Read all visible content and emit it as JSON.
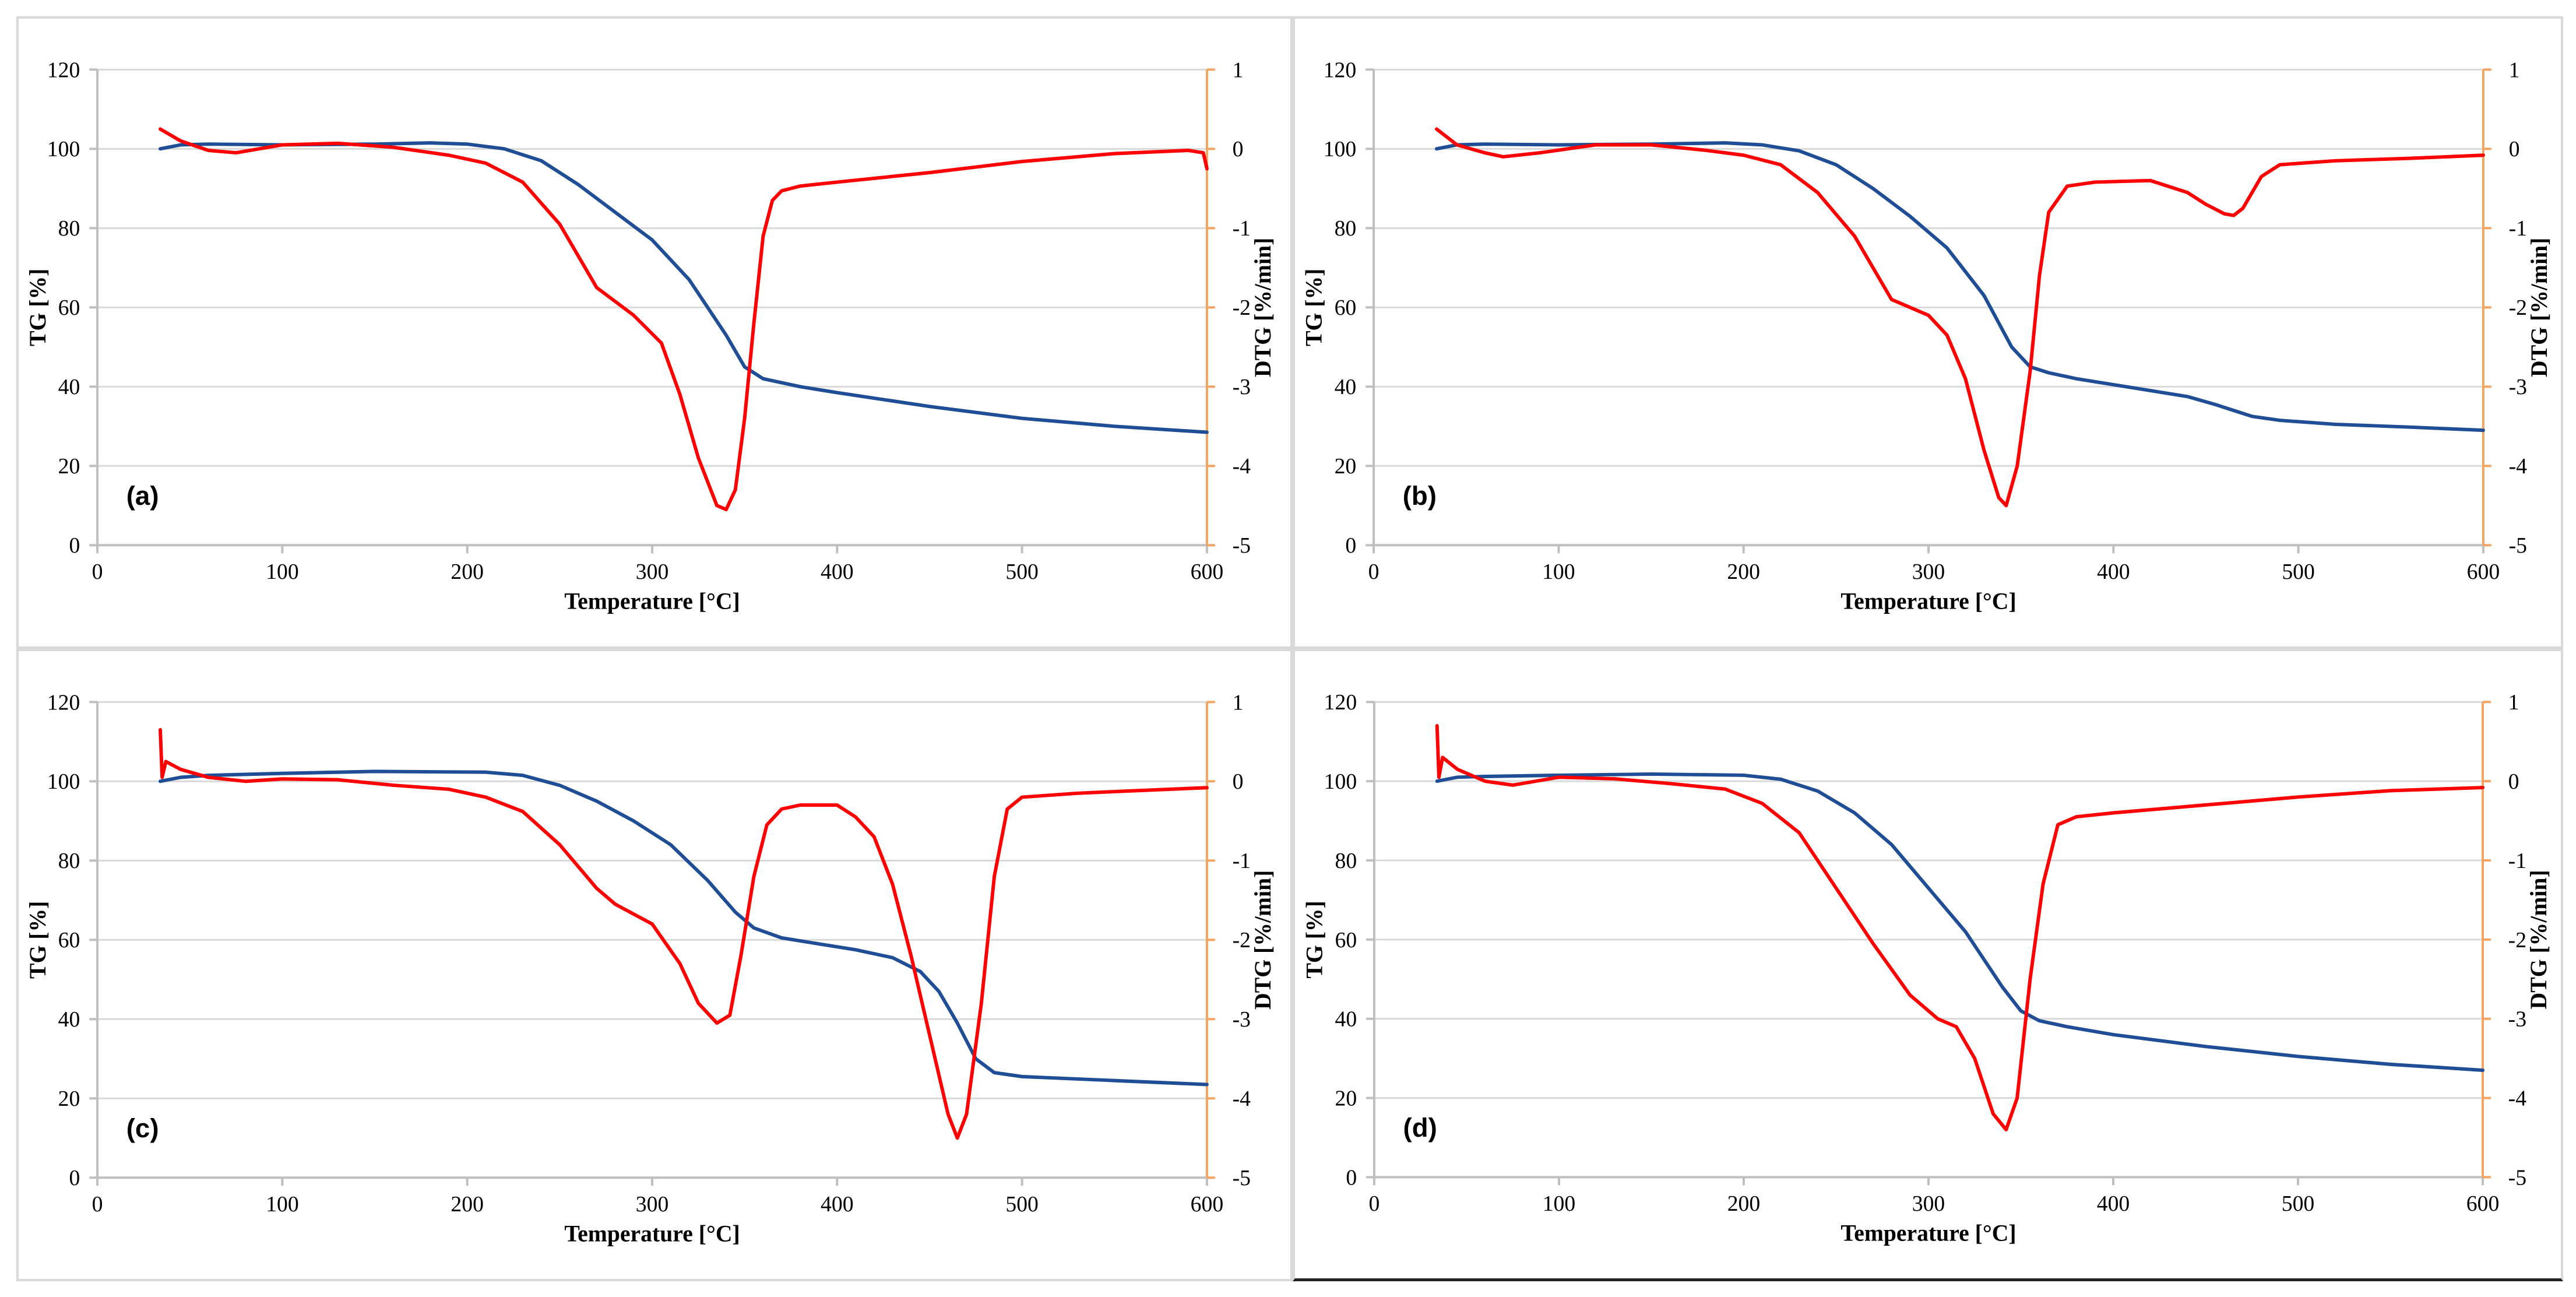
{
  "chart_data": [
    {
      "id": "a",
      "type": "line",
      "panel_label": "(a)",
      "xlabel": "Temperature [°C]",
      "ylabel": "TG [%]",
      "y2label": "DTG [%/min]",
      "xlim": [
        0,
        600
      ],
      "ylim": [
        0,
        120
      ],
      "y2lim": [
        -5,
        1
      ],
      "xticks": [
        "0",
        "100",
        "200",
        "300",
        "400",
        "500",
        "600"
      ],
      "yticks": [
        "0",
        "20",
        "40",
        "60",
        "80",
        "100",
        "120"
      ],
      "y2ticks": [
        "-5",
        "-4",
        "-3",
        "-2",
        "-1",
        "0",
        "1"
      ],
      "grid": true,
      "series": [
        {
          "name": "TG",
          "axis": "left",
          "color": "#1f4e96",
          "x": [
            34,
            45,
            60,
            100,
            150,
            180,
            200,
            220,
            240,
            260,
            280,
            300,
            320,
            340,
            350,
            360,
            380,
            400,
            450,
            500,
            550,
            600
          ],
          "y": [
            100,
            101,
            101.2,
            101,
            101.2,
            101.5,
            101.2,
            100,
            97,
            91,
            84,
            77,
            67,
            53,
            45,
            42,
            40,
            38.5,
            35,
            32,
            30,
            28.5
          ]
        },
        {
          "name": "DTG",
          "axis": "right",
          "color": "#ff0000",
          "x": [
            34,
            45,
            60,
            75,
            100,
            130,
            160,
            190,
            210,
            230,
            250,
            270,
            290,
            305,
            315,
            325,
            335,
            340,
            345,
            350,
            355,
            360,
            365,
            370,
            380,
            400,
            450,
            500,
            550,
            590,
            598,
            600
          ],
          "y": [
            0.25,
            0.1,
            -0.02,
            -0.05,
            0.05,
            0.07,
            0.02,
            -0.08,
            -0.18,
            -0.42,
            -0.95,
            -1.75,
            -2.1,
            -2.45,
            -3.1,
            -3.9,
            -4.5,
            -4.55,
            -4.3,
            -3.4,
            -2.2,
            -1.1,
            -0.65,
            -0.53,
            -0.47,
            -0.42,
            -0.3,
            -0.16,
            -0.06,
            -0.02,
            -0.05,
            -0.25
          ]
        }
      ]
    },
    {
      "id": "b",
      "type": "line",
      "panel_label": "(b)",
      "xlabel": "Temperature [°C]",
      "ylabel": "TG [%]",
      "y2label": "DTG [%/min]",
      "xlim": [
        0,
        600
      ],
      "ylim": [
        0,
        120
      ],
      "y2lim": [
        -5,
        1
      ],
      "xticks": [
        "0",
        "100",
        "200",
        "300",
        "400",
        "500",
        "600"
      ],
      "yticks": [
        "0",
        "20",
        "40",
        "60",
        "80",
        "100",
        "120"
      ],
      "y2ticks": [
        "-5",
        "-4",
        "-3",
        "-2",
        "-1",
        "0",
        "1"
      ],
      "grid": true,
      "series": [
        {
          "name": "TG",
          "axis": "left",
          "color": "#1f4e96",
          "x": [
            34,
            45,
            60,
            100,
            150,
            190,
            210,
            230,
            250,
            270,
            290,
            310,
            330,
            345,
            355,
            365,
            380,
            400,
            420,
            440,
            455,
            465,
            475,
            490,
            520,
            560,
            600
          ],
          "y": [
            100,
            101,
            101.2,
            101,
            101.2,
            101.5,
            101,
            99.5,
            96,
            90,
            83,
            75,
            63,
            50,
            45,
            43.5,
            42,
            40.5,
            39,
            37.5,
            35.5,
            34,
            32.5,
            31.5,
            30.5,
            29.8,
            29
          ]
        },
        {
          "name": "DTG",
          "axis": "right",
          "color": "#ff0000",
          "x": [
            34,
            45,
            60,
            70,
            90,
            120,
            150,
            180,
            200,
            220,
            240,
            260,
            280,
            300,
            310,
            320,
            330,
            338,
            342,
            348,
            355,
            360,
            365,
            375,
            390,
            420,
            440,
            450,
            460,
            465,
            470,
            480,
            490,
            520,
            560,
            600
          ],
          "y": [
            0.25,
            0.05,
            -0.05,
            -0.1,
            -0.05,
            0.05,
            0.05,
            -0.02,
            -0.08,
            -0.2,
            -0.55,
            -1.1,
            -1.9,
            -2.1,
            -2.35,
            -2.9,
            -3.8,
            -4.4,
            -4.5,
            -4.0,
            -2.8,
            -1.6,
            -0.8,
            -0.47,
            -0.42,
            -0.4,
            -0.55,
            -0.7,
            -0.82,
            -0.84,
            -0.75,
            -0.35,
            -0.2,
            -0.15,
            -0.12,
            -0.08
          ]
        }
      ]
    },
    {
      "id": "c",
      "type": "line",
      "panel_label": "(c)",
      "xlabel": "Temperature [°C]",
      "ylabel": "TG [%]",
      "y2label": "DTG [%/min]",
      "xlim": [
        0,
        600
      ],
      "ylim": [
        0,
        120
      ],
      "y2lim": [
        -5,
        1
      ],
      "xticks": [
        "0",
        "100",
        "200",
        "300",
        "400",
        "500",
        "600"
      ],
      "yticks": [
        "0",
        "20",
        "40",
        "60",
        "80",
        "100",
        "120"
      ],
      "y2ticks": [
        "-5",
        "-4",
        "-3",
        "-2",
        "-1",
        "0",
        "1"
      ],
      "grid": true,
      "series": [
        {
          "name": "TG",
          "axis": "left",
          "color": "#1f4e96",
          "x": [
            34,
            45,
            60,
            100,
            150,
            210,
            230,
            250,
            270,
            290,
            310,
            330,
            345,
            355,
            370,
            390,
            410,
            430,
            445,
            455,
            465,
            475,
            485,
            500,
            550,
            600
          ],
          "y": [
            100,
            101,
            101.5,
            102,
            102.5,
            102.3,
            101.5,
            99,
            95,
            90,
            84,
            75,
            67,
            63,
            60.5,
            59,
            57.5,
            55.5,
            52,
            47,
            39,
            30,
            26.5,
            25.5,
            24.5,
            23.5
          ]
        },
        {
          "name": "DTG",
          "axis": "right",
          "color": "#ff0000",
          "x": [
            34,
            35,
            37,
            45,
            60,
            80,
            100,
            130,
            160,
            190,
            210,
            230,
            250,
            270,
            280,
            300,
            315,
            325,
            335,
            342,
            348,
            355,
            362,
            370,
            380,
            400,
            410,
            420,
            430,
            440,
            450,
            460,
            465,
            470,
            478,
            485,
            492,
            500,
            530,
            560,
            600
          ],
          "y": [
            0.65,
            0.05,
            0.25,
            0.15,
            0.05,
            0.0,
            0.03,
            0.02,
            -0.05,
            -0.1,
            -0.2,
            -0.38,
            -0.8,
            -1.35,
            -1.55,
            -1.8,
            -2.3,
            -2.8,
            -3.05,
            -2.95,
            -2.2,
            -1.2,
            -0.55,
            -0.35,
            -0.3,
            -0.3,
            -0.45,
            -0.7,
            -1.3,
            -2.2,
            -3.2,
            -4.2,
            -4.5,
            -4.2,
            -2.8,
            -1.2,
            -0.35,
            -0.2,
            -0.15,
            -0.12,
            -0.08
          ]
        }
      ]
    },
    {
      "id": "d",
      "type": "line",
      "panel_label": "(d)",
      "xlabel": "Temperature [°C]",
      "ylabel": "TG [%]",
      "y2label": "DTG [%/min]",
      "xlim": [
        0,
        600
      ],
      "ylim": [
        0,
        120
      ],
      "y2lim": [
        -5,
        1
      ],
      "xticks": [
        "0",
        "100",
        "200",
        "300",
        "400",
        "500",
        "600"
      ],
      "yticks": [
        "0",
        "20",
        "40",
        "60",
        "80",
        "100",
        "120"
      ],
      "y2ticks": [
        "-5",
        "-4",
        "-3",
        "-2",
        "-1",
        "0",
        "1"
      ],
      "grid": true,
      "series": [
        {
          "name": "TG",
          "axis": "left",
          "color": "#1f4e96",
          "x": [
            34,
            45,
            60,
            100,
            150,
            200,
            220,
            240,
            260,
            280,
            300,
            320,
            340,
            350,
            360,
            375,
            400,
            450,
            500,
            550,
            600
          ],
          "y": [
            100,
            101,
            101.2,
            101.5,
            101.8,
            101.5,
            100.5,
            97.5,
            92,
            84,
            73,
            62,
            48,
            42,
            39.5,
            38,
            36,
            33,
            30.5,
            28.5,
            27
          ]
        },
        {
          "name": "DTG",
          "axis": "right",
          "color": "#ff0000",
          "x": [
            34,
            35,
            37,
            45,
            60,
            75,
            100,
            130,
            160,
            190,
            210,
            230,
            250,
            270,
            290,
            305,
            315,
            325,
            335,
            342,
            348,
            355,
            362,
            370,
            380,
            400,
            450,
            500,
            550,
            600
          ],
          "y": [
            0.7,
            0.05,
            0.3,
            0.15,
            0.0,
            -0.05,
            0.05,
            0.03,
            -0.03,
            -0.1,
            -0.28,
            -0.65,
            -1.35,
            -2.05,
            -2.7,
            -3.0,
            -3.1,
            -3.5,
            -4.2,
            -4.4,
            -4.0,
            -2.5,
            -1.3,
            -0.55,
            -0.45,
            -0.4,
            -0.3,
            -0.2,
            -0.12,
            -0.08
          ]
        }
      ]
    }
  ]
}
